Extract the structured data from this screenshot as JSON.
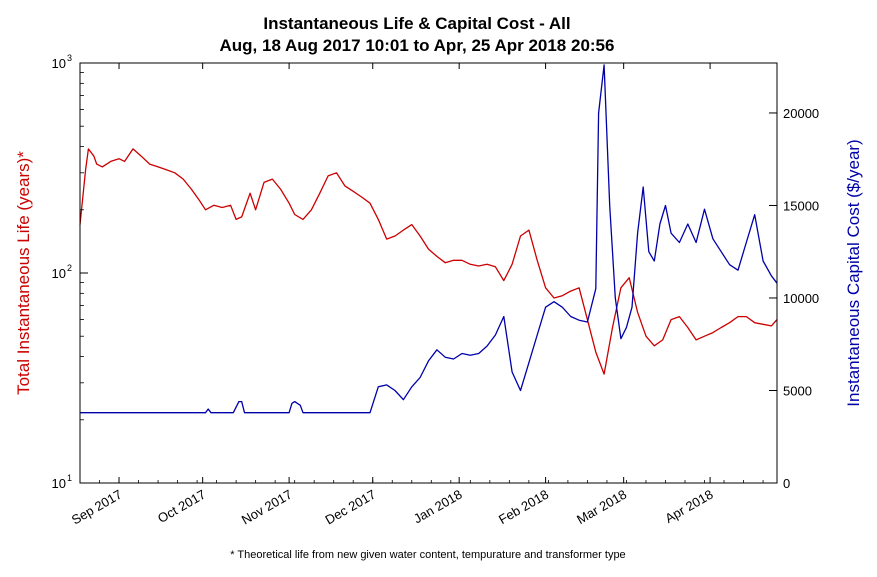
{
  "chart_data": {
    "type": "line",
    "title": "Instantaneous Life & Capital Cost - All",
    "subtitle": "Aug, 18 Aug 2017 10:01 to Apr, 25 Apr 2018 20:56",
    "footnote": "* Theoretical life from new given water content, tempurature and transformer type",
    "x_tick_labels": [
      "Sep 2017",
      "Oct 2017",
      "Nov 2017",
      "Dec 2017",
      "Jan 2018",
      "Feb 2018",
      "Mar 2018",
      "Apr 2018"
    ],
    "x_tick_dates": [
      "2017-09-01",
      "2017-10-01",
      "2017-11-01",
      "2017-12-01",
      "2018-01-01",
      "2018-02-01",
      "2018-03-01",
      "2018-04-01"
    ],
    "xlim": [
      "2017-08-18",
      "2018-04-25"
    ],
    "y_left": {
      "label": "Total Instantaneous Life (years)*",
      "scale": "log",
      "ylim": [
        10,
        1000
      ],
      "ticks": [
        10,
        100,
        1000
      ],
      "tick_labels": [
        {
          "base": "10",
          "exp": "1"
        },
        {
          "base": "10",
          "exp": "2"
        },
        {
          "base": "10",
          "exp": "3"
        }
      ],
      "color": "#cc0000"
    },
    "y_right": {
      "label": "Instantaneous Capital Cost ($/year)",
      "scale": "linear",
      "ylim": [
        0,
        22700
      ],
      "ticks": [
        0,
        5000,
        10000,
        15000,
        20000
      ],
      "tick_labels": [
        "0",
        "5000",
        "10000",
        "15000",
        "20000"
      ],
      "color": "#0000aa"
    },
    "series": [
      {
        "name": "",
        "axis": "left",
        "color": "#cc0000",
        "x": [
          "2017-08-18",
          "2017-08-20",
          "2017-08-21",
          "2017-08-23",
          "2017-08-24",
          "2017-08-26",
          "2017-08-29",
          "2017-09-01",
          "2017-09-03",
          "2017-09-06",
          "2017-09-09",
          "2017-09-12",
          "2017-09-15",
          "2017-09-18",
          "2017-09-21",
          "2017-09-24",
          "2017-09-27",
          "2017-09-30",
          "2017-10-02",
          "2017-10-05",
          "2017-10-08",
          "2017-10-11",
          "2017-10-13",
          "2017-10-15",
          "2017-10-18",
          "2017-10-20",
          "2017-10-23",
          "2017-10-26",
          "2017-10-29",
          "2017-11-01",
          "2017-11-03",
          "2017-11-06",
          "2017-11-09",
          "2017-11-12",
          "2017-11-15",
          "2017-11-18",
          "2017-11-21",
          "2017-11-24",
          "2017-11-27",
          "2017-11-30",
          "2017-12-03",
          "2017-12-06",
          "2017-12-09",
          "2017-12-12",
          "2017-12-15",
          "2017-12-18",
          "2017-12-21",
          "2017-12-24",
          "2017-12-27",
          "2017-12-30",
          "2018-01-02",
          "2018-01-05",
          "2018-01-08",
          "2018-01-11",
          "2018-01-14",
          "2018-01-17",
          "2018-01-20",
          "2018-01-23",
          "2018-01-26",
          "2018-01-29",
          "2018-02-01",
          "2018-02-04",
          "2018-02-07",
          "2018-02-10",
          "2018-02-13",
          "2018-02-16",
          "2018-02-19",
          "2018-02-22",
          "2018-02-25",
          "2018-02-28",
          "2018-03-03",
          "2018-03-06",
          "2018-03-09",
          "2018-03-12",
          "2018-03-15",
          "2018-03-18",
          "2018-03-21",
          "2018-03-24",
          "2018-03-27",
          "2018-03-30",
          "2018-04-02",
          "2018-04-05",
          "2018-04-08",
          "2018-04-11",
          "2018-04-14",
          "2018-04-17",
          "2018-04-20",
          "2018-04-23",
          "2018-04-25"
        ],
        "y": [
          170,
          310,
          390,
          360,
          330,
          320,
          340,
          350,
          340,
          390,
          360,
          330,
          320,
          310,
          300,
          280,
          250,
          220,
          200,
          210,
          205,
          210,
          180,
          185,
          240,
          200,
          270,
          280,
          250,
          215,
          190,
          180,
          200,
          240,
          290,
          300,
          260,
          245,
          230,
          215,
          180,
          145,
          150,
          160,
          170,
          150,
          130,
          120,
          112,
          115,
          115,
          110,
          108,
          110,
          107,
          92,
          110,
          150,
          160,
          115,
          85,
          76,
          78,
          82,
          85,
          60,
          42,
          33,
          55,
          85,
          95,
          65,
          50,
          45,
          48,
          60,
          62,
          55,
          48,
          50,
          52,
          55,
          58,
          62,
          62,
          58,
          57,
          56,
          60
        ]
      },
      {
        "name": "",
        "axis": "right",
        "color": "#0000aa",
        "x": [
          "2017-08-18",
          "2017-09-12",
          "2017-10-02",
          "2017-10-03",
          "2017-10-04",
          "2017-10-05",
          "2017-10-12",
          "2017-10-14",
          "2017-10-15",
          "2017-10-16",
          "2017-10-17",
          "2017-10-18",
          "2017-10-20",
          "2017-11-01",
          "2017-11-02",
          "2017-11-03",
          "2017-11-05",
          "2017-11-06",
          "2017-11-07",
          "2017-11-08",
          "2017-11-30",
          "2017-12-03",
          "2017-12-06",
          "2017-12-09",
          "2017-12-12",
          "2017-12-15",
          "2017-12-18",
          "2017-12-21",
          "2017-12-24",
          "2017-12-27",
          "2017-12-30",
          "2018-01-02",
          "2018-01-05",
          "2018-01-08",
          "2018-01-11",
          "2018-01-14",
          "2018-01-17",
          "2018-01-20",
          "2018-01-23",
          "2018-01-26",
          "2018-01-29",
          "2018-02-01",
          "2018-02-04",
          "2018-02-07",
          "2018-02-10",
          "2018-02-13",
          "2018-02-16",
          "2018-02-19",
          "2018-02-20",
          "2018-02-22",
          "2018-02-24",
          "2018-02-26",
          "2018-02-28",
          "2018-03-02",
          "2018-03-04",
          "2018-03-06",
          "2018-03-08",
          "2018-03-10",
          "2018-03-12",
          "2018-03-14",
          "2018-03-16",
          "2018-03-18",
          "2018-03-21",
          "2018-03-24",
          "2018-03-27",
          "2018-03-30",
          "2018-04-02",
          "2018-04-05",
          "2018-04-08",
          "2018-04-11",
          "2018-04-14",
          "2018-04-17",
          "2018-04-20",
          "2018-04-23",
          "2018-04-25"
        ],
        "y": [
          3800,
          3800,
          3800,
          4000,
          3800,
          3800,
          3800,
          4400,
          4400,
          3800,
          3800,
          3800,
          3800,
          3800,
          4300,
          4400,
          4200,
          3800,
          3800,
          3800,
          3800,
          5200,
          5300,
          5000,
          4500,
          5200,
          5700,
          6600,
          7200,
          6800,
          6700,
          7000,
          6900,
          7000,
          7400,
          8000,
          9000,
          6000,
          5000,
          6500,
          8000,
          9500,
          9800,
          9500,
          9000,
          8800,
          8700,
          10500,
          20000,
          22600,
          15000,
          10000,
          7800,
          8400,
          9500,
          13500,
          16000,
          12500,
          12000,
          14000,
          15000,
          13500,
          13000,
          14000,
          13000,
          14800,
          13200,
          12500,
          11800,
          11500,
          13000,
          14500,
          12000,
          11200,
          10800
        ]
      }
    ]
  }
}
